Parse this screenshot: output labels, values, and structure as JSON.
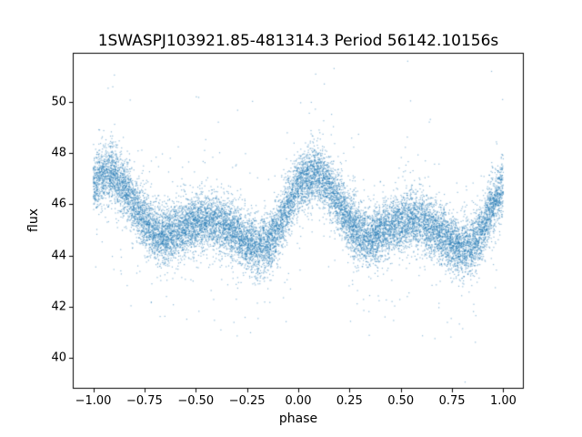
{
  "figure": {
    "title": "1SWASPJ103921.85-481314.3 Period 56142.10156s",
    "xlabel": "phase",
    "ylabel": "flux"
  },
  "chart_data": {
    "type": "scatter",
    "title": "1SWASPJ103921.85-481314.3 Period 56142.10156s",
    "xlabel": "phase",
    "ylabel": "flux",
    "grid": false,
    "legend_position": "none",
    "xlim": [
      -1.1,
      1.1
    ],
    "ylim": [
      38.8,
      51.9
    ],
    "xticks": [
      -1.0,
      -0.75,
      -0.5,
      -0.25,
      0.0,
      0.25,
      0.5,
      0.75,
      1.0
    ],
    "xtick_labels": [
      "−1.00",
      "−0.75",
      "−0.50",
      "−0.25",
      "0.00",
      "0.25",
      "0.50",
      "0.75",
      "1.00"
    ],
    "yticks": [
      40,
      42,
      44,
      46,
      48,
      50
    ],
    "ytick_labels": [
      "40",
      "42",
      "44",
      "46",
      "48",
      "50"
    ],
    "marker_color": "#1f77b4",
    "marker_size_px": 1.2,
    "marker_alpha": 0.5,
    "n_points": 16000,
    "seed": 42,
    "x_range": [
      -1.0,
      1.0
    ],
    "noise_sigma": 0.55,
    "outlier_fraction": 0.05,
    "outlier_sigma": 1.7,
    "mean_curve": {
      "comment": "phase-folded mean flux over one period; scatter repeats this over phase -1..1",
      "phase": [
        0.0,
        0.05,
        0.1,
        0.15,
        0.2,
        0.25,
        0.3,
        0.35,
        0.4,
        0.45,
        0.5,
        0.55,
        0.6,
        0.65,
        0.7,
        0.75,
        0.8,
        0.85,
        0.9,
        0.95,
        1.0
      ],
      "flux": [
        46.7,
        47.1,
        47.2,
        46.7,
        46.0,
        45.3,
        44.9,
        44.7,
        44.9,
        45.1,
        45.3,
        45.4,
        45.3,
        45.1,
        44.8,
        44.5,
        44.3,
        44.4,
        45.0,
        46.0,
        46.7
      ]
    },
    "axes_frame_color": "#000000"
  }
}
